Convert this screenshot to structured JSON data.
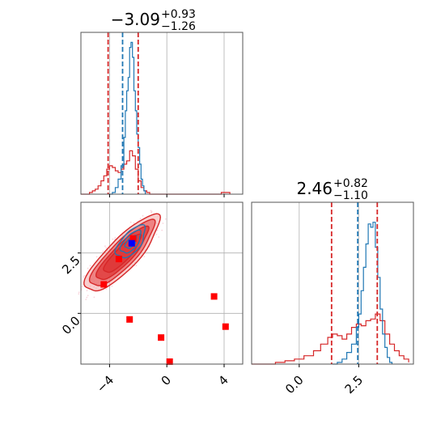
{
  "chart_data": {
    "type": "corner",
    "colors": {
      "red": "#d62728",
      "blue": "#1f77b4",
      "fill_light": "#f4a6a6",
      "fill_mid": "#e96a6a",
      "fill_dark": "#de3535",
      "marker_red": "#ff0000",
      "marker_blue": "#0000ff",
      "grid": "#b0b0b0"
    },
    "parameters": [
      {
        "title": {
          "median": "−3.09",
          "plus": "+0.93",
          "minus": "−1.26"
        },
        "range": [
          -6.0,
          5.3
        ],
        "ticks": [
          -4,
          0,
          4
        ],
        "tick_labels": [
          "−4",
          "0",
          "4"
        ],
        "red_lines": [
          -4.1,
          -2.0
        ],
        "blue_line": -3.09,
        "red_hist": [
          [
            -6.0,
            0.0
          ],
          [
            -5.8,
            0.0
          ],
          [
            -5.6,
            0.0
          ],
          [
            -5.4,
            0.01
          ],
          [
            -5.2,
            0.02
          ],
          [
            -5.0,
            0.03
          ],
          [
            -4.8,
            0.05
          ],
          [
            -4.6,
            0.08
          ],
          [
            -4.4,
            0.11
          ],
          [
            -4.2,
            0.15
          ],
          [
            -4.0,
            0.17
          ],
          [
            -3.8,
            0.16
          ],
          [
            -3.6,
            0.14
          ],
          [
            -3.4,
            0.13
          ],
          [
            -3.2,
            0.15
          ],
          [
            -3.0,
            0.18
          ],
          [
            -2.8,
            0.2
          ],
          [
            -2.6,
            0.26
          ],
          [
            -2.4,
            0.23
          ],
          [
            -2.2,
            0.15
          ],
          [
            -2.0,
            0.08
          ],
          [
            -1.8,
            0.04
          ],
          [
            -1.6,
            0.02
          ],
          [
            -1.4,
            0.01
          ],
          [
            -1.2,
            0.0
          ],
          [
            3.8,
            0.01
          ],
          [
            4.0,
            0.01
          ],
          [
            4.2,
            0.01
          ],
          [
            4.4,
            0.0
          ]
        ],
        "blue_hist": [
          [
            -4.0,
            0.0
          ],
          [
            -3.8,
            0.01
          ],
          [
            -3.6,
            0.04
          ],
          [
            -3.4,
            0.09
          ],
          [
            -3.2,
            0.17
          ],
          [
            -3.0,
            0.34
          ],
          [
            -2.9,
            0.5
          ],
          [
            -2.8,
            0.62
          ],
          [
            -2.7,
            0.7
          ],
          [
            -2.6,
            0.88
          ],
          [
            -2.5,
            0.91
          ],
          [
            -2.4,
            0.82
          ],
          [
            -2.3,
            0.62
          ],
          [
            -2.2,
            0.5
          ],
          [
            -2.1,
            0.36
          ],
          [
            -2.0,
            0.28
          ],
          [
            -1.9,
            0.18
          ],
          [
            -1.8,
            0.09
          ],
          [
            -1.7,
            0.05
          ],
          [
            -1.6,
            0.02
          ],
          [
            -1.5,
            0.0
          ]
        ]
      },
      {
        "title": {
          "median": "2.46",
          "plus": "+0.82",
          "minus": "−1.10"
        },
        "range": [
          -2.0,
          4.8
        ],
        "ticks": [
          0.0,
          2.5
        ],
        "tick_labels": [
          "0.0",
          "2.5"
        ],
        "red_lines": [
          1.36,
          3.28
        ],
        "blue_line": 2.46,
        "red_hist": [
          [
            -2.0,
            0.0
          ],
          [
            -1.0,
            0.01
          ],
          [
            -0.6,
            0.02
          ],
          [
            -0.2,
            0.03
          ],
          [
            0.2,
            0.05
          ],
          [
            0.6,
            0.08
          ],
          [
            0.9,
            0.12
          ],
          [
            1.2,
            0.16
          ],
          [
            1.4,
            0.18
          ],
          [
            1.6,
            0.17
          ],
          [
            1.8,
            0.15
          ],
          [
            2.0,
            0.18
          ],
          [
            2.2,
            0.22
          ],
          [
            2.4,
            0.24
          ],
          [
            2.6,
            0.23
          ],
          [
            2.8,
            0.26
          ],
          [
            3.0,
            0.27
          ],
          [
            3.2,
            0.3
          ],
          [
            3.4,
            0.26
          ],
          [
            3.6,
            0.18
          ],
          [
            3.8,
            0.12
          ],
          [
            4.0,
            0.08
          ],
          [
            4.2,
            0.05
          ],
          [
            4.4,
            0.03
          ],
          [
            4.6,
            0.01
          ]
        ],
        "blue_hist": [
          [
            1.4,
            0.0
          ],
          [
            1.6,
            0.01
          ],
          [
            1.8,
            0.03
          ],
          [
            2.0,
            0.07
          ],
          [
            2.2,
            0.12
          ],
          [
            2.4,
            0.22
          ],
          [
            2.5,
            0.3
          ],
          [
            2.6,
            0.44
          ],
          [
            2.7,
            0.58
          ],
          [
            2.8,
            0.72
          ],
          [
            2.9,
            0.84
          ],
          [
            3.0,
            0.82
          ],
          [
            3.1,
            0.85
          ],
          [
            3.2,
            0.7
          ],
          [
            3.3,
            0.52
          ],
          [
            3.4,
            0.33
          ],
          [
            3.5,
            0.18
          ],
          [
            3.6,
            0.1
          ],
          [
            3.7,
            0.04
          ],
          [
            3.8,
            0.01
          ],
          [
            3.9,
            0.0
          ]
        ]
      }
    ],
    "joint": {
      "xrange": [
        -6.0,
        5.3
      ],
      "yrange": [
        -2.1,
        4.6
      ],
      "xticks": [
        -4,
        0,
        4
      ],
      "xtick_labels": [
        "−4",
        "0",
        "4"
      ],
      "yticks": [
        0.0,
        2.5
      ],
      "ytick_labels": [
        "0.0",
        "2.5"
      ],
      "red_contour_center": [
        -3.1,
        2.45
      ],
      "red_contours": [
        {
          "a": 3.0,
          "b": 0.9,
          "angle_deg": 46
        },
        {
          "a": 2.6,
          "b": 0.72,
          "angle_deg": 46
        },
        {
          "a": 2.1,
          "b": 0.55,
          "angle_deg": 46
        },
        {
          "a": 1.5,
          "b": 0.4,
          "angle_deg": 46
        }
      ],
      "blue_contour_center": [
        -2.5,
        2.95
      ],
      "blue_contours": [
        {
          "a": 1.15,
          "b": 0.55,
          "angle_deg": 50
        },
        {
          "a": 0.8,
          "b": 0.38,
          "angle_deg": 50
        },
        {
          "a": 0.45,
          "b": 0.22,
          "angle_deg": 50
        }
      ],
      "red_points": [
        [
          -4.4,
          1.2
        ],
        [
          -3.35,
          2.25
        ],
        [
          -2.35,
          3.1
        ],
        [
          -2.6,
          -0.25
        ],
        [
          -0.4,
          -1.0
        ],
        [
          0.2,
          -2.0
        ],
        [
          3.3,
          0.7
        ],
        [
          4.1,
          -0.55
        ]
      ],
      "blue_point": [
        -2.45,
        2.9
      ]
    }
  }
}
